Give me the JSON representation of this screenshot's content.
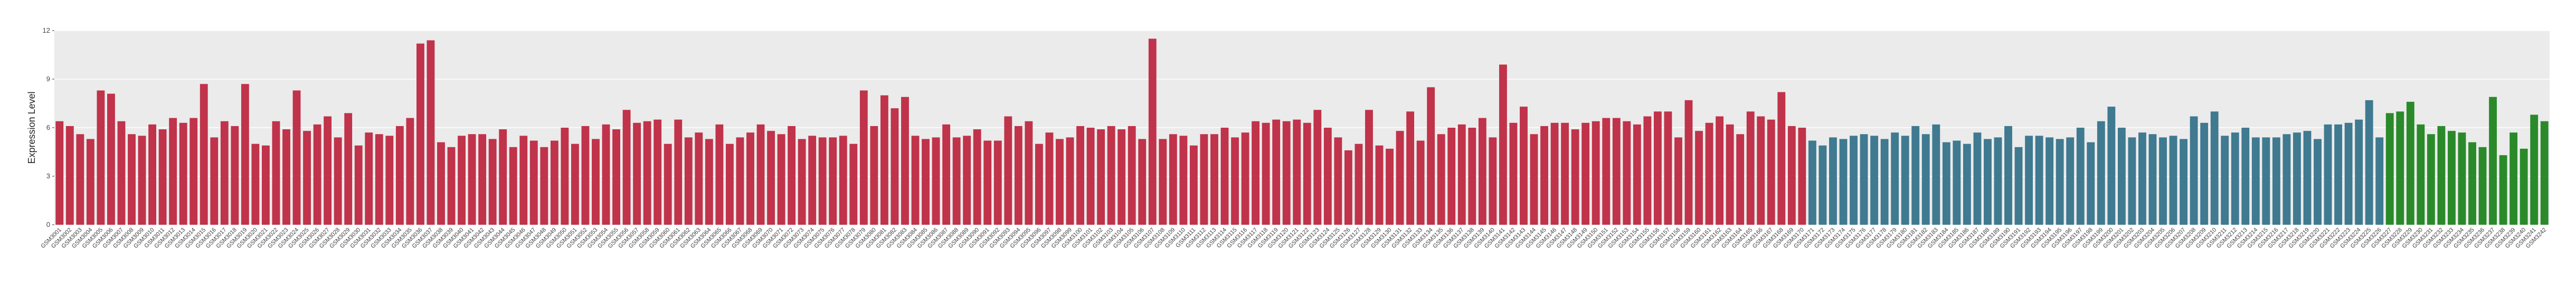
{
  "chart_data": {
    "type": "bar",
    "y_label": "Expression Level",
    "ylim": [
      0,
      12
    ],
    "yticks": [
      0,
      3,
      6,
      9,
      12
    ],
    "grid": true,
    "groups": [
      {
        "color": "#c0334a",
        "categories": [
          "GSM3001",
          "GSM3002",
          "GSM3003",
          "GSM3004",
          "GSM3005",
          "GSM3006",
          "GSM3007",
          "GSM3008",
          "GSM3009",
          "GSM3010",
          "GSM3011",
          "GSM3012",
          "GSM3013",
          "GSM3014",
          "GSM3015",
          "GSM3016",
          "GSM3017",
          "GSM3018",
          "GSM3019",
          "GSM3020",
          "GSM3021",
          "GSM3022",
          "GSM3023",
          "GSM3024",
          "GSM3025",
          "GSM3026",
          "GSM3027",
          "GSM3028",
          "GSM3029",
          "GSM3030",
          "GSM3031",
          "GSM3032",
          "GSM3033",
          "GSM3034",
          "GSM3035",
          "GSM3036",
          "GSM3037",
          "GSM3038",
          "GSM3039",
          "GSM3040",
          "GSM3041",
          "GSM3042",
          "GSM3043",
          "GSM3044",
          "GSM3045",
          "GSM3046",
          "GSM3047",
          "GSM3048",
          "GSM3049",
          "GSM3050",
          "GSM3051",
          "GSM3052",
          "GSM3053",
          "GSM3054",
          "GSM3055",
          "GSM3056",
          "GSM3057",
          "GSM3058",
          "GSM3059",
          "GSM3060",
          "GSM3061",
          "GSM3062",
          "GSM3063",
          "GSM3064",
          "GSM3065",
          "GSM3066",
          "GSM3067",
          "GSM3068",
          "GSM3069",
          "GSM3070",
          "GSM3071",
          "GSM3072",
          "GSM3073",
          "GSM3074",
          "GSM3075",
          "GSM3076",
          "GSM3077",
          "GSM3078",
          "GSM3079",
          "GSM3080",
          "GSM3081",
          "GSM3082",
          "GSM3083",
          "GSM3084",
          "GSM3085",
          "GSM3086",
          "GSM3087",
          "GSM3088",
          "GSM3089",
          "GSM3090",
          "GSM3091",
          "GSM3092",
          "GSM3093",
          "GSM3094",
          "GSM3095",
          "GSM3096",
          "GSM3097",
          "GSM3098",
          "GSM3099",
          "GSM3100",
          "GSM3101",
          "GSM3102",
          "GSM3103",
          "GSM3104",
          "GSM3105",
          "GSM3106",
          "GSM3107",
          "GSM3108",
          "GSM3109",
          "GSM3110",
          "GSM3111",
          "GSM3112",
          "GSM3113",
          "GSM3114",
          "GSM3115",
          "GSM3116",
          "GSM3117",
          "GSM3118",
          "GSM3119",
          "GSM3120",
          "GSM3121",
          "GSM3122",
          "GSM3123",
          "GSM3124",
          "GSM3125",
          "GSM3126",
          "GSM3127",
          "GSM3128",
          "GSM3129",
          "GSM3130",
          "GSM3131",
          "GSM3132",
          "GSM3133",
          "GSM3134",
          "GSM3135",
          "GSM3136",
          "GSM3137",
          "GSM3138",
          "GSM3139",
          "GSM3140",
          "GSM3141",
          "GSM3142",
          "GSM3143",
          "GSM3144",
          "GSM3145",
          "GSM3146",
          "GSM3147",
          "GSM3148",
          "GSM3149",
          "GSM3150",
          "GSM3151",
          "GSM3152",
          "GSM3153",
          "GSM3154",
          "GSM3155",
          "GSM3156",
          "GSM3157",
          "GSM3158",
          "GSM3159",
          "GSM3160",
          "GSM3161",
          "GSM3162",
          "GSM3163",
          "GSM3164",
          "GSM3165",
          "GSM3166",
          "GSM3167",
          "GSM3168",
          "GSM3169",
          "GSM3170"
        ],
        "values": [
          6.4,
          6.1,
          5.6,
          5.3,
          8.3,
          8.1,
          6.4,
          5.6,
          5.5,
          6.2,
          5.9,
          6.6,
          6.3,
          6.6,
          8.7,
          5.4,
          6.4,
          6.1,
          8.7,
          5.0,
          4.9,
          6.4,
          5.9,
          8.3,
          5.8,
          6.2,
          6.7,
          5.4,
          6.9,
          4.9,
          5.7,
          5.6,
          5.5,
          6.1,
          6.6,
          11.2,
          11.4,
          5.1,
          4.8,
          5.5,
          5.6,
          5.6,
          5.3,
          5.9,
          4.8,
          5.5,
          5.2,
          4.8,
          5.2,
          6.0,
          5.0,
          6.1,
          5.3,
          6.2,
          5.9,
          7.1,
          6.3,
          6.4,
          6.5,
          5.0,
          6.5,
          5.4,
          5.7,
          5.3,
          6.2,
          5.0,
          5.4,
          5.7,
          6.2,
          5.8,
          5.6,
          6.1,
          5.3,
          5.5,
          5.4,
          5.4,
          5.5,
          5.0,
          8.3,
          6.1,
          8.0,
          7.2,
          7.9,
          5.5,
          5.3,
          5.4,
          6.2,
          5.4,
          5.5,
          5.9,
          5.2,
          5.2,
          6.7,
          6.1,
          6.4,
          5.0,
          5.7,
          5.3,
          5.4,
          6.1,
          6.0,
          5.9,
          6.1,
          5.9,
          6.1,
          5.3,
          11.5,
          5.3,
          5.6,
          5.5,
          4.9,
          5.6,
          5.6,
          6.0,
          5.4,
          5.7,
          6.4,
          6.3,
          6.5,
          6.4,
          6.5,
          6.3,
          7.1,
          6.0,
          5.4,
          4.6,
          5.0,
          7.1,
          4.9,
          4.7,
          5.8,
          7.0,
          5.2,
          8.5,
          5.6,
          6.0,
          6.2,
          6.0,
          6.6,
          5.4,
          9.9,
          6.3,
          7.3,
          5.6,
          6.1,
          6.3,
          6.3,
          5.9,
          6.3,
          6.4,
          6.6,
          6.6,
          6.4,
          6.2,
          6.7,
          7.0,
          7.0,
          5.4,
          7.7,
          5.8,
          6.3,
          6.7,
          6.2,
          5.6,
          7.0,
          6.7,
          6.5,
          8.2,
          6.1,
          6.0
        ]
      },
      {
        "color": "#3f7a91",
        "categories": [
          "GSM3171",
          "GSM3172",
          "GSM3173",
          "GSM3174",
          "GSM3175",
          "GSM3176",
          "GSM3177",
          "GSM3178",
          "GSM3179",
          "GSM3180",
          "GSM3181",
          "GSM3182",
          "GSM3183",
          "GSM3184",
          "GSM3185",
          "GSM3186",
          "GSM3187",
          "GSM3188",
          "GSM3189",
          "GSM3190",
          "GSM3191",
          "GSM3192",
          "GSM3193",
          "GSM3194",
          "GSM3195",
          "GSM3196",
          "GSM3197",
          "GSM3198",
          "GSM3199",
          "GSM3200",
          "GSM3201",
          "GSM3202",
          "GSM3203",
          "GSM3204",
          "GSM3205",
          "GSM3206",
          "GSM3207",
          "GSM3208",
          "GSM3209",
          "GSM3210",
          "GSM3211",
          "GSM3212",
          "GSM3213",
          "GSM3214",
          "GSM3215",
          "GSM3216",
          "GSM3217",
          "GSM3218",
          "GSM3219",
          "GSM3220",
          "GSM3221",
          "GSM3222",
          "GSM3223",
          "GSM3224",
          "GSM3225",
          "GSM3226"
        ],
        "values": [
          5.2,
          4.9,
          5.4,
          5.3,
          5.5,
          5.6,
          5.5,
          5.3,
          5.7,
          5.5,
          6.1,
          5.6,
          6.2,
          5.1,
          5.2,
          5.0,
          5.7,
          5.3,
          5.4,
          6.1,
          4.8,
          5.5,
          5.5,
          5.4,
          5.3,
          5.4,
          6.0,
          5.1,
          6.4,
          7.3,
          6.0,
          5.4,
          5.7,
          5.6,
          5.4,
          5.5,
          5.3,
          6.7,
          6.3,
          7.0,
          5.5,
          5.7,
          6.0,
          5.4,
          5.4,
          5.4,
          5.6,
          5.7,
          5.8,
          5.3,
          6.2,
          6.2,
          6.3,
          6.5,
          7.7,
          5.4
        ]
      },
      {
        "color": "#2a8a2a",
        "categories": [
          "GSM3227",
          "GSM3228",
          "GSM3229",
          "GSM3230",
          "GSM3231",
          "GSM3232",
          "GSM3233",
          "GSM3234",
          "GSM3235",
          "GSM3236",
          "GSM3237",
          "GSM3238",
          "GSM3239",
          "GSM3240",
          "GSM3241",
          "GSM3242"
        ],
        "values": [
          6.9,
          7.0,
          7.6,
          6.2,
          5.6,
          6.1,
          5.8,
          5.7,
          5.1,
          4.8,
          7.9,
          4.3,
          5.7,
          4.7,
          6.8,
          6.4
        ]
      }
    ]
  }
}
